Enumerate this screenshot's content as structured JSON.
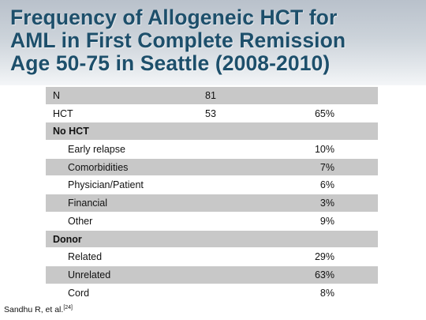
{
  "title": {
    "line1": "Frequency of Allogeneic HCT for",
    "line2": "AML in First Complete Remission",
    "line3": "Age 50-75 in Seattle (2008-2010)"
  },
  "table": {
    "rows": [
      {
        "label": "N",
        "count": "81",
        "pct": "",
        "shaded": true,
        "bold": false,
        "indent": false
      },
      {
        "label": "HCT",
        "count": "53",
        "pct": "65%",
        "shaded": false,
        "bold": false,
        "indent": false
      },
      {
        "label": "No HCT",
        "count": "",
        "pct": "",
        "shaded": true,
        "bold": true,
        "indent": false
      },
      {
        "label": "Early relapse",
        "count": "",
        "pct": "10%",
        "shaded": false,
        "bold": false,
        "indent": true
      },
      {
        "label": "Comorbidities",
        "count": "",
        "pct": "7%",
        "shaded": true,
        "bold": false,
        "indent": true
      },
      {
        "label": "Physician/Patient",
        "count": "",
        "pct": "6%",
        "shaded": false,
        "bold": false,
        "indent": true
      },
      {
        "label": "Financial",
        "count": "",
        "pct": "3%",
        "shaded": true,
        "bold": false,
        "indent": true
      },
      {
        "label": "Other",
        "count": "",
        "pct": "9%",
        "shaded": false,
        "bold": false,
        "indent": true
      },
      {
        "label": "Donor",
        "count": "",
        "pct": "",
        "shaded": true,
        "bold": true,
        "indent": false
      },
      {
        "label": "Related",
        "count": "",
        "pct": "29%",
        "shaded": false,
        "bold": false,
        "indent": true
      },
      {
        "label": "Unrelated",
        "count": "",
        "pct": "63%",
        "shaded": true,
        "bold": false,
        "indent": true
      },
      {
        "label": "Cord",
        "count": "",
        "pct": "8%",
        "shaded": false,
        "bold": false,
        "indent": true
      }
    ]
  },
  "citation": {
    "text": "Sandhu R, et al.",
    "ref": "[24]"
  },
  "colors": {
    "title": "#1d4f6b",
    "row_shade": "#c8c8c8",
    "header_band_top": "#b9c1cb"
  }
}
